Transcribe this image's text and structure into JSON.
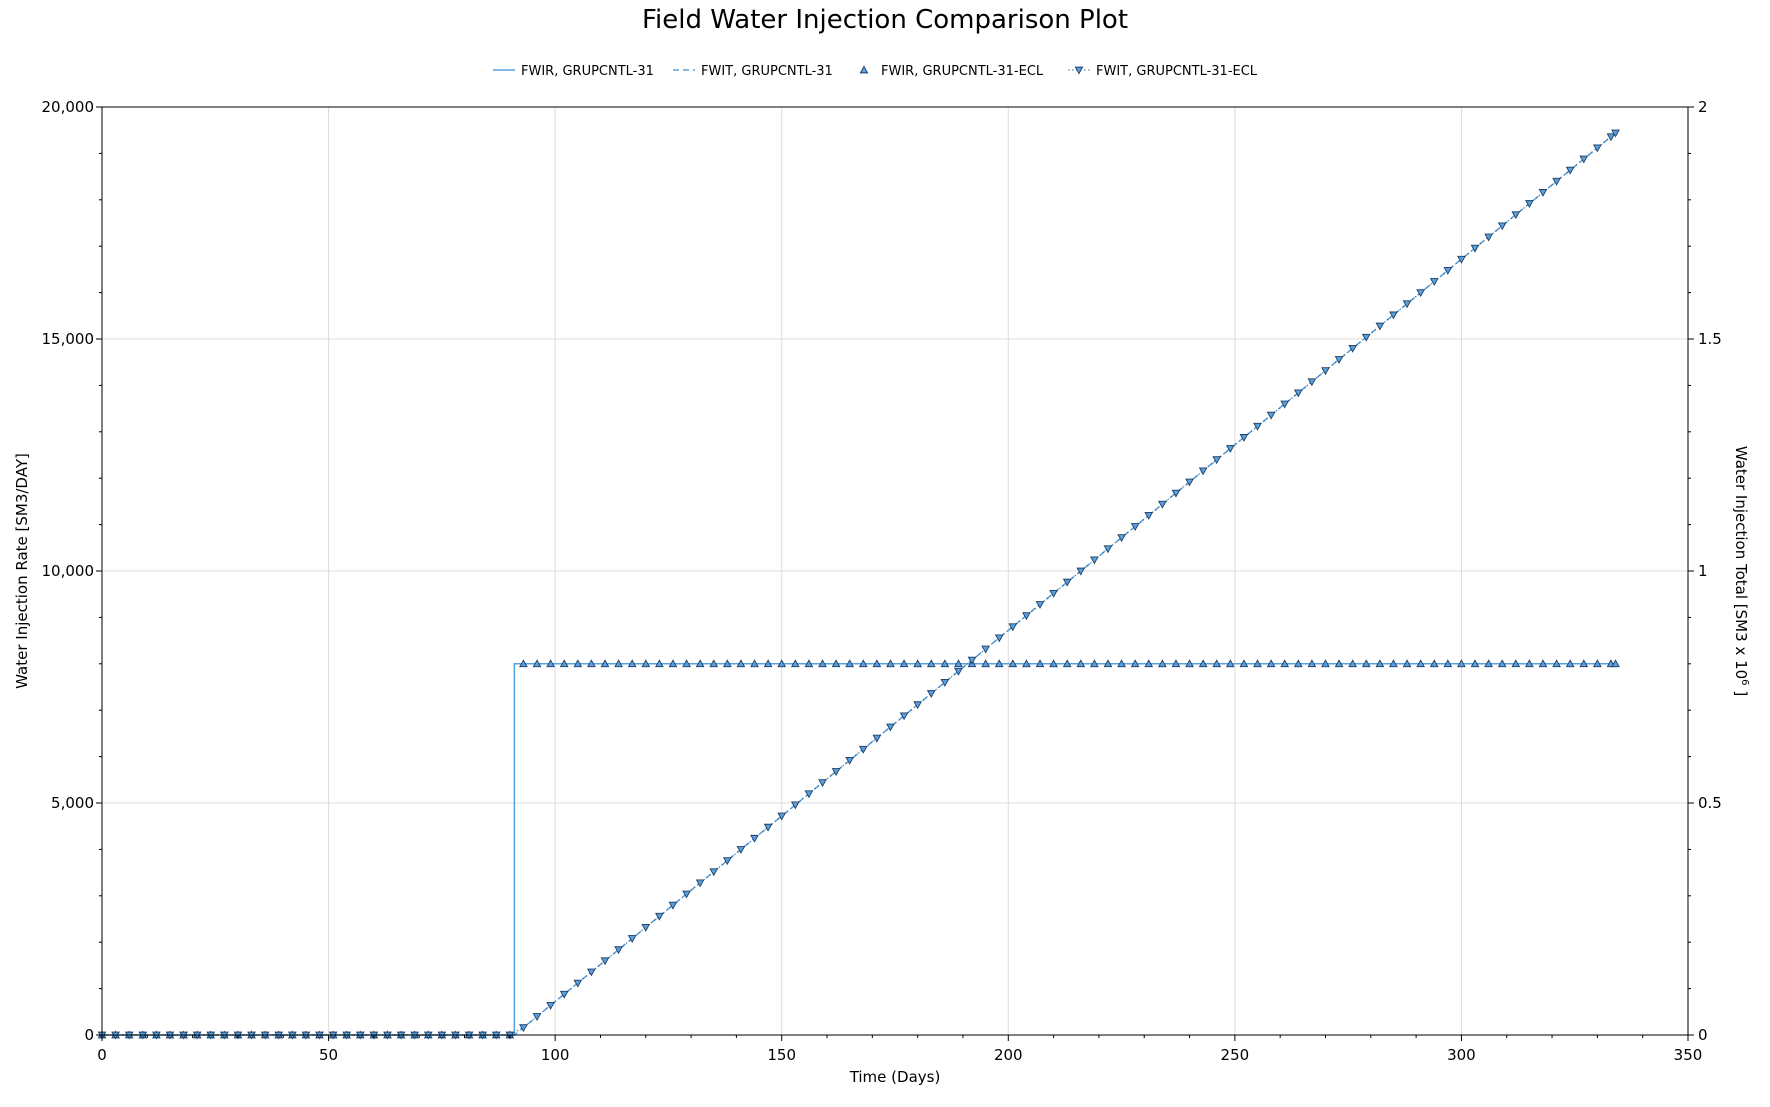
{
  "chart_data": {
    "type": "line",
    "title": "Field Water Injection Comparison Plot",
    "xlabel": "Time (Days)",
    "ylabel_left": "Water Injection Rate [SM3/DAY]",
    "ylabel_right": "Water Injection Total [SM3 x 10",
    "ylabel_right_exp": "6",
    "ylabel_right_close": " ]",
    "xlim": [
      0,
      350
    ],
    "ylim_left": [
      0,
      20000
    ],
    "ylim_right": [
      0,
      2
    ],
    "x_ticks": [
      0,
      50,
      100,
      150,
      200,
      250,
      300,
      350
    ],
    "x_tick_labels": [
      "0",
      "50",
      "100",
      "150",
      "200",
      "250",
      "300",
      "350"
    ],
    "y_left_ticks": [
      0,
      5000,
      10000,
      15000,
      20000
    ],
    "y_left_tick_labels": [
      "0",
      "5,000",
      "10,000",
      "15,000",
      "20,000"
    ],
    "y_right_ticks": [
      0,
      0.5,
      1,
      1.5,
      2
    ],
    "y_right_tick_labels": [
      "0",
      "0.5",
      "1",
      "1.5",
      "2"
    ],
    "grid": true,
    "legend_position": "top-center",
    "series": [
      {
        "name": "FWIR, GRUPCNTL-31",
        "axis": "left",
        "style": "solid",
        "marker": "none",
        "color": "#5aa0dc",
        "x": [
          0,
          91,
          91,
          334
        ],
        "y": [
          0,
          0,
          8000,
          8000
        ]
      },
      {
        "name": "FWIT, GRUPCNTL-31",
        "axis": "right",
        "style": "dashed",
        "marker": "none",
        "color": "#5aa0dc",
        "x": [
          0,
          91,
          334
        ],
        "y": [
          0,
          0,
          1.944
        ]
      },
      {
        "name": "FWIR, GRUPCNTL-31-ECL",
        "axis": "left",
        "style": "none",
        "marker": "triangle-up",
        "color": "#5aa0dc",
        "step": 3,
        "x_range": [
          0,
          334
        ],
        "rule": "0 for x < 92, 8000 for x >= 92"
      },
      {
        "name": "FWIT, GRUPCNTL-31-ECL",
        "axis": "right",
        "style": "dotted",
        "marker": "triangle-down",
        "color": "#5aa0dc",
        "step": 3,
        "x_range": [
          0,
          334
        ],
        "rule": "0 for x <= 91, 0.008 per day after day 91"
      }
    ]
  }
}
